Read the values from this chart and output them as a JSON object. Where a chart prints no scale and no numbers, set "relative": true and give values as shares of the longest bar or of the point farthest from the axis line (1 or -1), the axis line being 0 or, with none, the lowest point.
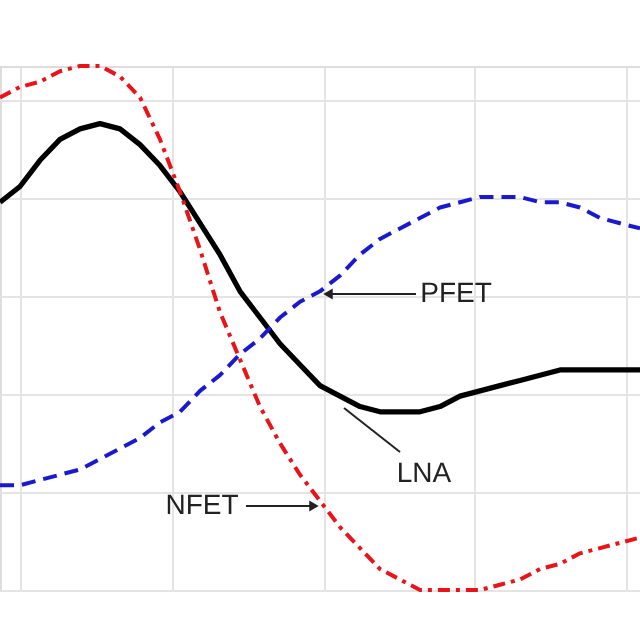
{
  "chart_data": {
    "type": "line",
    "relative": true,
    "grid": true,
    "legend": false,
    "categories": [
      null,
      null,
      null,
      null,
      null,
      null,
      null,
      null,
      null,
      null,
      null,
      null,
      null,
      null,
      null,
      null,
      null,
      null,
      null,
      null,
      null,
      null,
      null,
      null,
      null,
      null,
      null,
      null,
      null,
      null,
      null,
      null,
      null
    ],
    "series": [
      {
        "color": "#000000",
        "line_style": "solid",
        "values": [
          0.74,
          0.77,
          0.82,
          0.86,
          0.88,
          0.89,
          0.88,
          0.85,
          0.81,
          0.76,
          0.7,
          0.64,
          0.57,
          0.52,
          0.47,
          0.43,
          0.39,
          0.37,
          0.35,
          0.34,
          0.34,
          0.34,
          0.35,
          0.37,
          0.38,
          0.39,
          0.4,
          0.41,
          0.42,
          0.42,
          0.42,
          0.42,
          0.42
        ]
      },
      {
        "color": "#e8141a",
        "line_style": "dashdot",
        "values": [
          0.94,
          0.96,
          0.97,
          0.99,
          1.0,
          1.0,
          0.98,
          0.94,
          0.86,
          0.76,
          0.65,
          0.53,
          0.44,
          0.35,
          0.28,
          0.22,
          0.17,
          0.12,
          0.08,
          0.04,
          0.02,
          0.0,
          0.0,
          0.0,
          0.0,
          0.01,
          0.02,
          0.04,
          0.05,
          0.07,
          0.08,
          0.09,
          0.1
        ]
      },
      {
        "color": "#1a1acc",
        "line_style": "dashed",
        "values": [
          0.2,
          0.2,
          0.21,
          0.22,
          0.23,
          0.25,
          0.27,
          0.29,
          0.32,
          0.34,
          0.38,
          0.41,
          0.45,
          0.48,
          0.52,
          0.55,
          0.57,
          0.6,
          0.64,
          0.67,
          0.69,
          0.71,
          0.73,
          0.74,
          0.75,
          0.75,
          0.75,
          0.74,
          0.74,
          0.73,
          0.71,
          0.7,
          0.69
        ]
      }
    ],
    "annotations": [
      "PFET",
      "NFET",
      "LNA"
    ]
  }
}
